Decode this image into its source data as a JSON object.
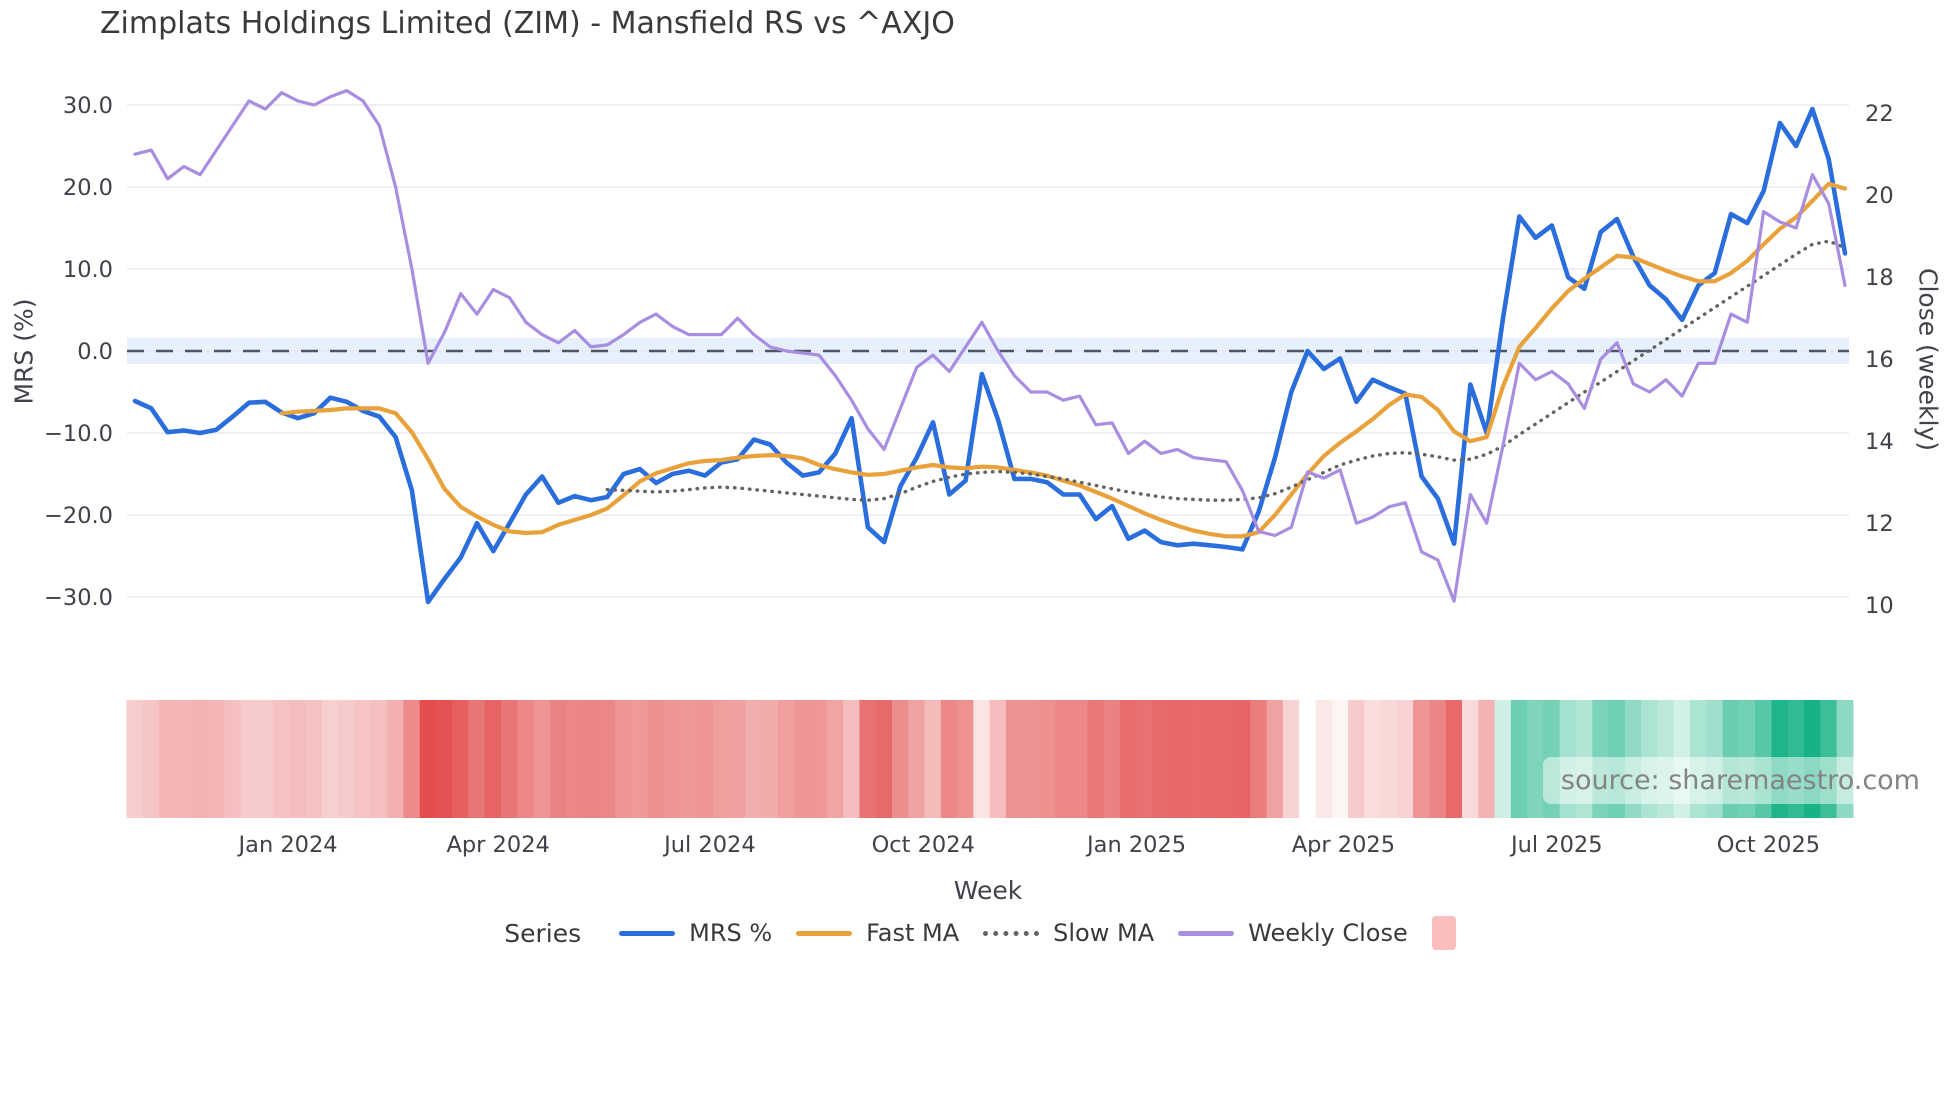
{
  "title": "Zimplats Holdings Limited (ZIM) - Mansfield RS vs ^AXJO",
  "source_note": "source: sharemaestro.com",
  "axes": {
    "x_title": "Week",
    "y_left_title": "MRS (%)",
    "y_right_title": "Close (weekly)",
    "y_left_ticks": [
      "30.0",
      "20.0",
      "10.0",
      "0.0",
      "−10.0",
      "−20.0",
      "−30.0"
    ],
    "y_left_tick_values": [
      30,
      20,
      10,
      0,
      -10,
      -20,
      -30
    ],
    "y_right_ticks": [
      "22",
      "20",
      "18",
      "16",
      "14",
      "12",
      "10"
    ],
    "y_right_tick_values": [
      22,
      20,
      18,
      16,
      14,
      12,
      10
    ],
    "x_tick_labels": [
      "Jan 2024",
      "Apr 2024",
      "Jul 2024",
      "Oct 2024",
      "Jan 2025",
      "Apr 2025",
      "Jul 2025",
      "Oct 2025"
    ],
    "x_tick_weeks": [
      9.4,
      22.3,
      35.3,
      48.4,
      61.5,
      74.2,
      87.3,
      100.3
    ]
  },
  "legend": {
    "title": "Series",
    "items": [
      {
        "label": "MRS %",
        "color": "#2a6ede",
        "style": "line"
      },
      {
        "label": "Fast MA",
        "color": "#e9a23b",
        "style": "line"
      },
      {
        "label": "Slow MA",
        "color": "#636363",
        "style": "dotted"
      },
      {
        "label": "Weekly Close",
        "color": "#a98de0",
        "style": "line"
      },
      {
        "label": "",
        "color": "#f9bdbd",
        "style": "square"
      }
    ]
  },
  "chart_data": {
    "type": "line",
    "subtype": "dual-axis weekly lines with heatmap strip",
    "x_unit": "week index (weekly data, late Oct 2023 to early Nov 2025)",
    "n_weeks": 106,
    "ylim_left": [
      -34,
      34
    ],
    "ylim_right": [
      9.4,
      22.8
    ],
    "grid": "horizontal only",
    "zero_line": {
      "value": 0,
      "style": "long-dash",
      "color": "#4e5662"
    },
    "zero_band": {
      "from": -1.6,
      "to": 1.6,
      "color": "rgba(160,200,250,0.25)"
    },
    "series": [
      {
        "name": "MRS %",
        "axis": "left",
        "color": "#2a6ede",
        "width": 4.6,
        "style": "solid",
        "values": [
          -6.1,
          -7.0,
          -9.9,
          -9.7,
          -10.0,
          -9.6,
          -8.0,
          -6.3,
          -6.2,
          -7.5,
          -8.2,
          -7.6,
          -5.7,
          -6.2,
          -7.3,
          -8.0,
          -10.5,
          -17.0,
          -30.6,
          -27.8,
          -25.2,
          -21.0,
          -24.4,
          -21.0,
          -17.5,
          -15.3,
          -18.5,
          -17.7,
          -18.2,
          -17.8,
          -15.0,
          -14.4,
          -16.1,
          -15.0,
          -14.6,
          -15.2,
          -13.6,
          -13.2,
          -10.8,
          -11.4,
          -13.6,
          -15.2,
          -14.8,
          -12.5,
          -8.2,
          -21.5,
          -23.3,
          -16.5,
          -13.0,
          -8.7,
          -17.5,
          -15.8,
          -2.8,
          -8.4,
          -15.6,
          -15.6,
          -16.0,
          -17.5,
          -17.5,
          -20.5,
          -18.9,
          -22.9,
          -21.9,
          -23.3,
          -23.7,
          -23.5,
          -23.7,
          -23.9,
          -24.2,
          -19.6,
          -13.0,
          -5.0,
          0.0,
          -2.2,
          -0.9,
          -6.2,
          -3.5,
          -4.4,
          -5.2,
          -15.3,
          -18.0,
          -23.5,
          -4.1,
          -10.0,
          4.0,
          16.4,
          13.8,
          15.3,
          9.0,
          7.6,
          14.5,
          16.1,
          11.5,
          8.0,
          6.3,
          3.8,
          8.0,
          9.5,
          16.7,
          15.6,
          19.5,
          27.8,
          25.0,
          29.5,
          23.4,
          11.9
        ]
      },
      {
        "name": "Fast MA",
        "axis": "left",
        "color": "#e9a23b",
        "width": 4.2,
        "style": "solid",
        "values": [
          null,
          null,
          null,
          null,
          null,
          null,
          null,
          null,
          null,
          -7.6,
          -7.4,
          -7.3,
          -7.2,
          -7.0,
          -7.0,
          -7.0,
          -7.6,
          -9.9,
          -13.2,
          -16.8,
          -19.0,
          -20.2,
          -21.2,
          -22.0,
          -22.2,
          -22.1,
          -21.2,
          -20.6,
          -20.0,
          -19.2,
          -17.6,
          -15.9,
          -14.9,
          -14.3,
          -13.7,
          -13.4,
          -13.3,
          -13.0,
          -12.8,
          -12.7,
          -12.8,
          -13.1,
          -13.9,
          -14.4,
          -14.8,
          -15.1,
          -15.0,
          -14.6,
          -14.2,
          -13.9,
          -14.2,
          -14.3,
          -14.1,
          -14.2,
          -14.5,
          -14.8,
          -15.2,
          -15.8,
          -16.4,
          -17.2,
          -18.0,
          -18.9,
          -19.8,
          -20.6,
          -21.3,
          -21.9,
          -22.3,
          -22.6,
          -22.6,
          -22.1,
          -20.0,
          -17.5,
          -15.0,
          -12.8,
          -11.2,
          -9.8,
          -8.3,
          -6.6,
          -5.3,
          -5.6,
          -7.2,
          -9.8,
          -11.0,
          -10.5,
          -4.3,
          0.5,
          2.8,
          5.2,
          7.3,
          8.8,
          10.2,
          11.6,
          11.4,
          10.6,
          9.8,
          9.1,
          8.5,
          8.5,
          9.5,
          11.0,
          13.0,
          14.9,
          16.3,
          18.3,
          20.4,
          19.8
        ]
      },
      {
        "name": "Slow MA",
        "axis": "left",
        "color": "#636363",
        "width": 3.4,
        "style": "dotted",
        "values": [
          null,
          null,
          null,
          null,
          null,
          null,
          null,
          null,
          null,
          null,
          null,
          null,
          null,
          null,
          null,
          null,
          null,
          null,
          null,
          null,
          null,
          null,
          null,
          null,
          null,
          null,
          null,
          null,
          null,
          -16.9,
          -17.0,
          -17.1,
          -17.2,
          -17.1,
          -16.9,
          -16.7,
          -16.6,
          -16.7,
          -16.9,
          -17.1,
          -17.3,
          -17.5,
          -17.7,
          -17.9,
          -18.1,
          -18.2,
          -18.0,
          -17.4,
          -16.6,
          -15.9,
          -15.4,
          -15.0,
          -14.8,
          -14.7,
          -14.8,
          -15.0,
          -15.3,
          -15.6,
          -16.0,
          -16.4,
          -16.8,
          -17.2,
          -17.5,
          -17.8,
          -18.0,
          -18.1,
          -18.2,
          -18.2,
          -18.1,
          -17.9,
          -17.4,
          -16.6,
          -15.7,
          -14.8,
          -13.9,
          -13.3,
          -12.8,
          -12.5,
          -12.4,
          -12.6,
          -12.9,
          -13.3,
          -13.2,
          -12.6,
          -11.6,
          -10.2,
          -8.9,
          -7.6,
          -6.3,
          -5.0,
          -3.8,
          -2.5,
          -1.2,
          0.1,
          1.4,
          2.7,
          4.0,
          5.3,
          6.6,
          7.9,
          9.2,
          10.5,
          11.8,
          13.0,
          13.4,
          12.6
        ]
      },
      {
        "name": "Weekly Close",
        "axis": "right",
        "color": "#a98de0",
        "width": 3.2,
        "style": "solid",
        "values": [
          20.8,
          20.9,
          20.2,
          20.5,
          20.3,
          20.9,
          21.5,
          22.1,
          21.9,
          22.3,
          22.1,
          22.0,
          22.2,
          22.35,
          22.1,
          21.5,
          20.0,
          18.0,
          15.7,
          16.45,
          17.4,
          16.9,
          17.5,
          17.3,
          16.7,
          16.4,
          16.2,
          16.5,
          16.1,
          16.15,
          16.4,
          16.7,
          16.9,
          16.6,
          16.4,
          16.4,
          16.4,
          16.8,
          16.4,
          16.1,
          16.0,
          15.95,
          15.9,
          15.4,
          14.8,
          14.1,
          13.6,
          14.6,
          15.6,
          15.9,
          15.5,
          16.1,
          16.7,
          16.0,
          15.4,
          15.0,
          15.0,
          14.8,
          14.9,
          14.2,
          14.25,
          13.5,
          13.8,
          13.5,
          13.6,
          13.4,
          13.35,
          13.3,
          12.6,
          11.6,
          11.5,
          11.7,
          13.05,
          12.9,
          13.1,
          11.8,
          11.95,
          12.2,
          12.3,
          11.1,
          10.9,
          9.9,
          12.5,
          11.8,
          13.7,
          15.7,
          15.3,
          15.5,
          15.2,
          14.6,
          15.8,
          16.2,
          15.2,
          15.0,
          15.3,
          14.9,
          15.7,
          15.7,
          16.9,
          16.7,
          19.4,
          19.15,
          19.0,
          20.3,
          19.6,
          17.6
        ]
      }
    ],
    "heatmap": {
      "description": "weekly strip colored from MRS % value",
      "source_series": "MRS %",
      "negative_color": "#e34d4d",
      "positive_color": "#17b286",
      "neutral_color": "#ffffff"
    }
  }
}
